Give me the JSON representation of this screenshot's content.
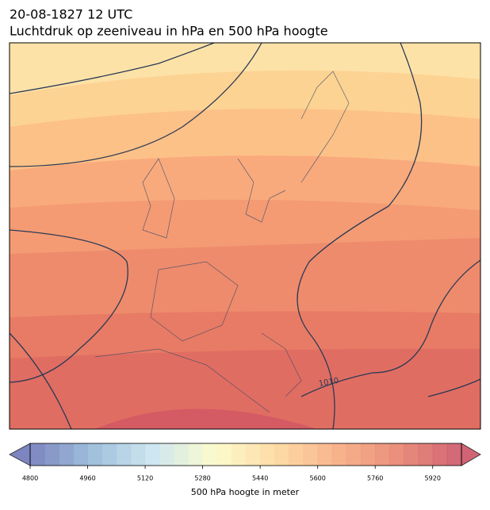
{
  "header": {
    "line1": "20-08-1827 12 UTC",
    "line2": "Luchtdruk op zeeniveau in hPa en 500 hPa hoogte"
  },
  "map": {
    "contour_labels": [
      "1010"
    ]
  },
  "colorbar": {
    "min": 4800,
    "max": 6000,
    "step": 40,
    "ticks": [
      4800,
      4960,
      5120,
      5280,
      5440,
      5600,
      5760,
      5920
    ],
    "label": "500 hPa hoogte in meter",
    "colormap": [
      "#6670b4",
      "#8fb4d6",
      "#c5e3ee",
      "#fdfac4",
      "#fdd596",
      "#f6a678",
      "#e57a64",
      "#c84a5e"
    ]
  }
}
